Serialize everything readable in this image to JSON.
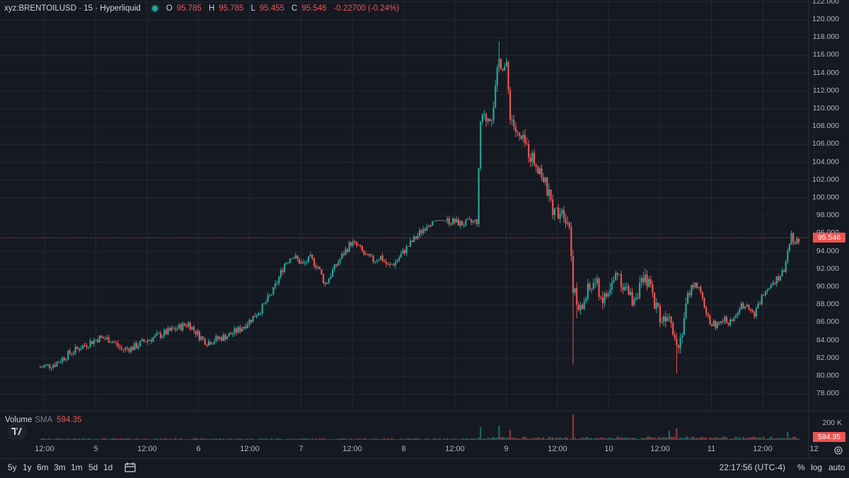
{
  "header": {
    "symbol": "xyz:BRENTOILUSD · 15 · Hyperliquid",
    "o_label": "O",
    "o_value": "95.785",
    "h_label": "H",
    "h_value": "95.785",
    "l_label": "L",
    "l_value": "95.455",
    "c_label": "C",
    "c_value": "95.546",
    "change": "-0.22700 (-0.24%)",
    "status_color": "#26a69a"
  },
  "volume_legend": {
    "label": "Volume",
    "sma_label": "SMA",
    "sma_value": "594.35"
  },
  "price_axis": {
    "labels": [
      "122.000",
      "120.000",
      "118.000",
      "116.000",
      "114.000",
      "112.000",
      "110.000",
      "108.000",
      "106.000",
      "104.000",
      "102.000",
      "100.000",
      "98.000",
      "96.000",
      "94.000",
      "92.000",
      "90.000",
      "88.000",
      "86.000",
      "84.000",
      "82.000",
      "80.000",
      "78.000"
    ],
    "current_price": "95.546",
    "volume_scale_label": "200 K",
    "volume_badge": "594.35"
  },
  "time_axis": [
    "12:00",
    "5",
    "12:00",
    "6",
    "12:00",
    "7",
    "12:00",
    "8",
    "12:00",
    "9",
    "12:00",
    "10",
    "12:00",
    "11",
    "12:00",
    "12"
  ],
  "timeframes": [
    "5y",
    "1y",
    "6m",
    "3m",
    "1m",
    "5d",
    "1d"
  ],
  "clock": "22:17:56 (UTC-4)",
  "axis_options": {
    "percent": "%",
    "log": "log",
    "auto": "auto"
  },
  "colors": {
    "up": "#26a69a",
    "down": "#ef5350",
    "background": "#151922",
    "grid": "#232733"
  },
  "chart_data": {
    "type": "candlestick",
    "symbol": "xyz:BRENTOILUSD",
    "interval": "15",
    "ylim": [
      77,
      122
    ],
    "x_ticks": [
      "12:00",
      "5",
      "12:00",
      "6",
      "12:00",
      "7",
      "12:00",
      "8",
      "12:00",
      "9",
      "12:00",
      "10",
      "12:00",
      "11",
      "12:00",
      "12"
    ],
    "price_path": [
      [
        0,
        81.0
      ],
      [
        4,
        81.4
      ],
      [
        8,
        82.6
      ],
      [
        12,
        83.5
      ],
      [
        16,
        84.3
      ],
      [
        19,
        84.1
      ],
      [
        22,
        83.0
      ],
      [
        25,
        83.2
      ],
      [
        28,
        83.9
      ],
      [
        31,
        84.4
      ],
      [
        34,
        84.9
      ],
      [
        37,
        85.4
      ],
      [
        40,
        85.9
      ],
      [
        43,
        84.5
      ],
      [
        45,
        83.8
      ],
      [
        48,
        84.2
      ],
      [
        51,
        84.6
      ],
      [
        54,
        85.3
      ],
      [
        57,
        86.4
      ],
      [
        60,
        87.7
      ],
      [
        63,
        89.6
      ],
      [
        66,
        92.6
      ],
      [
        68,
        93.6
      ],
      [
        71,
        92.5
      ],
      [
        73,
        93.2
      ],
      [
        75,
        92.3
      ],
      [
        77,
        90.3
      ],
      [
        79,
        91.8
      ],
      [
        82,
        93.8
      ],
      [
        84,
        95.0
      ],
      [
        86,
        94.5
      ],
      [
        88,
        93.4
      ],
      [
        90,
        93.0
      ],
      [
        92,
        93.4
      ],
      [
        94,
        92.3
      ],
      [
        96,
        92.8
      ],
      [
        99,
        94.4
      ],
      [
        102,
        95.8
      ],
      [
        105,
        97.3
      ],
      [
        108,
        97.5
      ],
      [
        111,
        97.4
      ],
      [
        114,
        97.1
      ],
      [
        117,
        97.3
      ],
      [
        118,
        97.4
      ],
      [
        119,
        108.5
      ],
      [
        122,
        109.5
      ],
      [
        123,
        112.0
      ],
      [
        124,
        115.5
      ],
      [
        126,
        114.5
      ],
      [
        127,
        109.5
      ],
      [
        129,
        106.8
      ],
      [
        131,
        106.0
      ],
      [
        133,
        104.5
      ],
      [
        135,
        103.3
      ],
      [
        137,
        100.8
      ],
      [
        139,
        98.2
      ],
      [
        141,
        99.0
      ],
      [
        143,
        97.0
      ],
      [
        144,
        90.2
      ],
      [
        145,
        88.0
      ],
      [
        146,
        87.3
      ],
      [
        148,
        89.5
      ],
      [
        150,
        90.6
      ],
      [
        152,
        88.5
      ],
      [
        154,
        89.6
      ],
      [
        156,
        91.9
      ],
      [
        158,
        89.8
      ],
      [
        160,
        88.6
      ],
      [
        162,
        90.0
      ],
      [
        164,
        90.8
      ],
      [
        166,
        88.5
      ],
      [
        168,
        86.3
      ],
      [
        170,
        87.5
      ],
      [
        172,
        83.5
      ],
      [
        173,
        84.3
      ],
      [
        175,
        89.0
      ],
      [
        177,
        90.7
      ],
      [
        179,
        88.5
      ],
      [
        181,
        86.0
      ],
      [
        183,
        85.7
      ],
      [
        185,
        86.3
      ],
      [
        187,
        86.0
      ],
      [
        189,
        87.7
      ],
      [
        191,
        88.3
      ],
      [
        193,
        86.8
      ],
      [
        195,
        88.9
      ],
      [
        197,
        90.3
      ],
      [
        199,
        91.0
      ],
      [
        201,
        91.6
      ],
      [
        202,
        94.5
      ],
      [
        203,
        95.9
      ],
      [
        204,
        95.0
      ],
      [
        205,
        95.5
      ]
    ],
    "spikes": [
      [
        124,
        117.6
      ],
      [
        144,
        81.3
      ],
      [
        172,
        80.3
      ],
      [
        145,
        86.5
      ]
    ],
    "volume_spikes": [
      [
        144,
        18000
      ],
      [
        124,
        10000
      ],
      [
        119,
        9000
      ],
      [
        172,
        8000
      ],
      [
        127,
        7000
      ],
      [
        170,
        6500
      ],
      [
        202,
        5500
      ]
    ],
    "volume_scale": 200000
  }
}
